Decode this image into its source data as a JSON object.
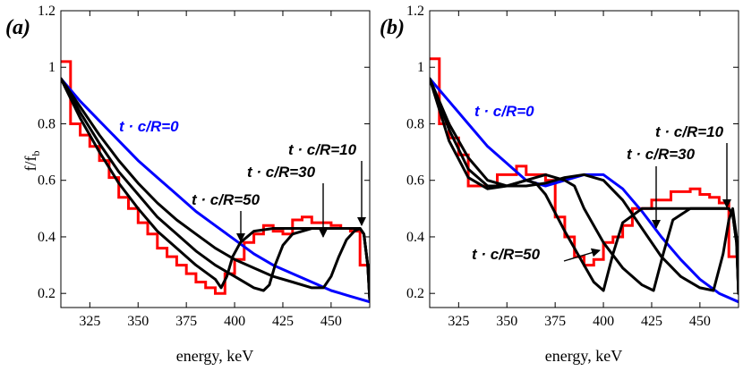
{
  "chart_data": [
    {
      "type": "line",
      "panel_label": "(a)",
      "xlabel": "energy, keV",
      "ylabel_main": "f/f",
      "ylabel_sub": "b",
      "xlim": [
        310,
        470
      ],
      "ylim": [
        0.15,
        1.2
      ],
      "xticks": [
        325,
        350,
        375,
        400,
        425,
        450
      ],
      "yticks": [
        0.2,
        0.4,
        0.6,
        0.8,
        1,
        1.2
      ],
      "ytick_labels": [
        "0.2",
        "0.4",
        "0.6",
        "0.8",
        "1",
        "1.2"
      ],
      "colors": {
        "histogram": "#ff0000",
        "model_t0": "#0000ff",
        "model_t": "#000000"
      },
      "histogram": {
        "edges": [
          310,
          315,
          320,
          325,
          330,
          335,
          340,
          345,
          350,
          355,
          360,
          365,
          370,
          375,
          380,
          385,
          390,
          395,
          400,
          405,
          410,
          415,
          420,
          425,
          430,
          435,
          440,
          445,
          450,
          455,
          460,
          465,
          470
        ],
        "values": [
          1.02,
          0.8,
          0.76,
          0.72,
          0.67,
          0.61,
          0.54,
          0.5,
          0.45,
          0.41,
          0.36,
          0.33,
          0.3,
          0.27,
          0.24,
          0.22,
          0.2,
          0.27,
          0.32,
          0.38,
          0.41,
          0.44,
          0.42,
          0.41,
          0.46,
          0.47,
          0.45,
          0.45,
          0.44,
          0.43,
          0.42,
          0.3
        ]
      },
      "series": [
        {
          "label": "t · c/R=0",
          "x": [
            310,
            320,
            330,
            340,
            350,
            360,
            370,
            380,
            390,
            400,
            410,
            420,
            430,
            440,
            450,
            460,
            470
          ],
          "y": [
            0.96,
            0.88,
            0.81,
            0.74,
            0.67,
            0.61,
            0.55,
            0.49,
            0.44,
            0.39,
            0.34,
            0.3,
            0.27,
            0.24,
            0.21,
            0.19,
            0.17
          ]
        },
        {
          "label": "t · c/R=10",
          "x": [
            310,
            320,
            330,
            340,
            350,
            360,
            370,
            380,
            390,
            400,
            410,
            420,
            430,
            440,
            446,
            450,
            454,
            458,
            462,
            465,
            467,
            469,
            470
          ],
          "y": [
            0.96,
            0.86,
            0.76,
            0.67,
            0.59,
            0.52,
            0.46,
            0.41,
            0.36,
            0.32,
            0.29,
            0.26,
            0.24,
            0.22,
            0.22,
            0.26,
            0.33,
            0.39,
            0.42,
            0.43,
            0.41,
            0.3,
            0.18
          ]
        },
        {
          "label": "t · c/R=30",
          "x": [
            310,
            320,
            330,
            340,
            350,
            360,
            370,
            380,
            390,
            400,
            410,
            415,
            418,
            421,
            425,
            430,
            440,
            450,
            460,
            465,
            467,
            469,
            470
          ],
          "y": [
            0.96,
            0.84,
            0.73,
            0.63,
            0.55,
            0.47,
            0.41,
            0.35,
            0.3,
            0.26,
            0.22,
            0.21,
            0.23,
            0.3,
            0.37,
            0.41,
            0.43,
            0.43,
            0.43,
            0.43,
            0.41,
            0.3,
            0.18
          ]
        },
        {
          "label": "t · c/R=50",
          "x": [
            310,
            320,
            330,
            340,
            350,
            360,
            370,
            380,
            390,
            393,
            396,
            399,
            403,
            410,
            420,
            430,
            440,
            450,
            460,
            465,
            467,
            469,
            470
          ],
          "y": [
            0.96,
            0.82,
            0.7,
            0.59,
            0.5,
            0.42,
            0.36,
            0.3,
            0.25,
            0.22,
            0.26,
            0.33,
            0.38,
            0.42,
            0.43,
            0.43,
            0.43,
            0.43,
            0.43,
            0.43,
            0.41,
            0.3,
            0.18
          ]
        }
      ],
      "annotations": [
        {
          "text": "t · c/R=0",
          "color": "#0000ff"
        },
        {
          "text": "t · c/R=10",
          "color": "#000000"
        },
        {
          "text": "t · c/R=30",
          "color": "#000000"
        },
        {
          "text": "t · c/R=50",
          "color": "#000000"
        }
      ]
    },
    {
      "type": "line",
      "panel_label": "(b)",
      "xlabel": "energy, keV",
      "xlim": [
        310,
        470
      ],
      "ylim": [
        0.15,
        1.2
      ],
      "xticks": [
        325,
        350,
        375,
        400,
        425,
        450
      ],
      "yticks": [
        0.2,
        0.4,
        0.6,
        0.8,
        1,
        1.2
      ],
      "ytick_labels": [
        "0.2",
        "0.4",
        "0.6",
        "0.8",
        "1",
        "1.2"
      ],
      "colors": {
        "histogram": "#ff0000",
        "model_t0": "#0000ff",
        "model_t": "#000000"
      },
      "histogram": {
        "edges": [
          310,
          315,
          320,
          325,
          330,
          335,
          340,
          345,
          350,
          355,
          360,
          365,
          370,
          375,
          380,
          385,
          390,
          395,
          400,
          405,
          410,
          415,
          420,
          425,
          430,
          435,
          440,
          445,
          450,
          455,
          460,
          465,
          470
        ],
        "values": [
          1.03,
          0.8,
          0.75,
          0.69,
          0.58,
          0.58,
          0.58,
          0.62,
          0.62,
          0.65,
          0.62,
          0.62,
          0.6,
          0.47,
          0.4,
          0.33,
          0.3,
          0.32,
          0.38,
          0.4,
          0.44,
          0.5,
          0.5,
          0.53,
          0.53,
          0.56,
          0.56,
          0.57,
          0.55,
          0.54,
          0.52,
          0.33
        ]
      },
      "series": [
        {
          "label": "t · c/R=0",
          "x": [
            310,
            320,
            330,
            340,
            350,
            360,
            370,
            380,
            390,
            400,
            410,
            420,
            430,
            440,
            450,
            460,
            470
          ],
          "y": [
            0.96,
            0.88,
            0.8,
            0.72,
            0.66,
            0.6,
            0.58,
            0.6,
            0.62,
            0.62,
            0.57,
            0.49,
            0.4,
            0.32,
            0.25,
            0.2,
            0.17
          ]
        },
        {
          "label": "t · c/R=10",
          "x": [
            310,
            320,
            330,
            340,
            350,
            360,
            370,
            380,
            390,
            400,
            410,
            420,
            430,
            440,
            450,
            457,
            462,
            465,
            467,
            469,
            470
          ],
          "y": [
            0.96,
            0.8,
            0.68,
            0.6,
            0.58,
            0.58,
            0.59,
            0.61,
            0.62,
            0.6,
            0.53,
            0.43,
            0.33,
            0.26,
            0.22,
            0.21,
            0.34,
            0.46,
            0.5,
            0.4,
            0.2
          ]
        },
        {
          "label": "t · c/R=30",
          "x": [
            310,
            320,
            330,
            340,
            350,
            360,
            370,
            380,
            385,
            390,
            400,
            410,
            420,
            426,
            431,
            436,
            445,
            455,
            465,
            467,
            469,
            470
          ],
          "y": [
            0.96,
            0.78,
            0.64,
            0.58,
            0.58,
            0.6,
            0.62,
            0.6,
            0.58,
            0.5,
            0.38,
            0.29,
            0.23,
            0.21,
            0.34,
            0.46,
            0.5,
            0.5,
            0.5,
            0.48,
            0.38,
            0.2
          ]
        },
        {
          "label": "t · c/R=50",
          "x": [
            310,
            320,
            330,
            340,
            350,
            360,
            365,
            370,
            380,
            390,
            395,
            400,
            405,
            410,
            420,
            430,
            440,
            450,
            460,
            465,
            467,
            469,
            470
          ],
          "y": [
            0.96,
            0.74,
            0.61,
            0.57,
            0.58,
            0.6,
            0.59,
            0.55,
            0.42,
            0.3,
            0.24,
            0.21,
            0.34,
            0.45,
            0.5,
            0.5,
            0.5,
            0.5,
            0.5,
            0.5,
            0.48,
            0.38,
            0.2
          ]
        }
      ],
      "annotations": [
        {
          "text": "t · c/R=0",
          "color": "#0000ff"
        },
        {
          "text": "t · c/R=10",
          "color": "#000000"
        },
        {
          "text": "t · c/R=30",
          "color": "#000000"
        },
        {
          "text": "t · c/R=50",
          "color": "#000000"
        }
      ]
    }
  ]
}
